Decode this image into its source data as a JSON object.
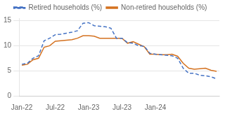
{
  "chart_data": {
    "type": "line",
    "categories": [
      "Jan-22",
      null,
      null,
      null,
      null,
      null,
      "Jul-22",
      null,
      null,
      null,
      null,
      null,
      "Jan-23",
      null,
      null,
      null,
      null,
      null,
      "Jul-23",
      null,
      null,
      null,
      null,
      null,
      "Jan-24",
      null,
      null,
      null,
      null,
      null,
      null,
      null,
      null,
      null,
      null,
      null
    ],
    "series": [
      {
        "name": "Retired households (%)",
        "color": "#4472C4",
        "line_style": "dashed",
        "values": [
          6.3,
          6.5,
          7.5,
          8.0,
          11.0,
          11.5,
          12.2,
          12.3,
          12.5,
          12.7,
          13.0,
          14.5,
          14.6,
          14.0,
          13.9,
          13.8,
          13.5,
          11.5,
          11.5,
          10.6,
          10.5,
          10.0,
          9.9,
          8.5,
          8.3,
          8.2,
          8.1,
          8.0,
          7.5,
          5.5,
          4.5,
          4.5,
          4.1,
          4.0,
          3.8,
          3.4
        ]
      },
      {
        "name": "Non-retired households (%)",
        "color": "#D4711F",
        "line_style": "solid",
        "values": [
          6.1,
          6.3,
          7.2,
          7.5,
          9.7,
          10.0,
          10.9,
          11.0,
          11.1,
          11.2,
          11.5,
          12.0,
          12.0,
          11.9,
          11.5,
          11.5,
          11.5,
          11.5,
          11.5,
          10.5,
          10.8,
          10.3,
          9.8,
          8.3,
          8.3,
          8.2,
          8.2,
          8.3,
          7.9,
          6.5,
          5.5,
          5.3,
          5.4,
          5.5,
          5.1,
          4.9
        ]
      }
    ],
    "ylim": [
      0,
      15.5
    ],
    "yticks": [
      0,
      5,
      10,
      15
    ],
    "grid": true,
    "legend": "top"
  }
}
